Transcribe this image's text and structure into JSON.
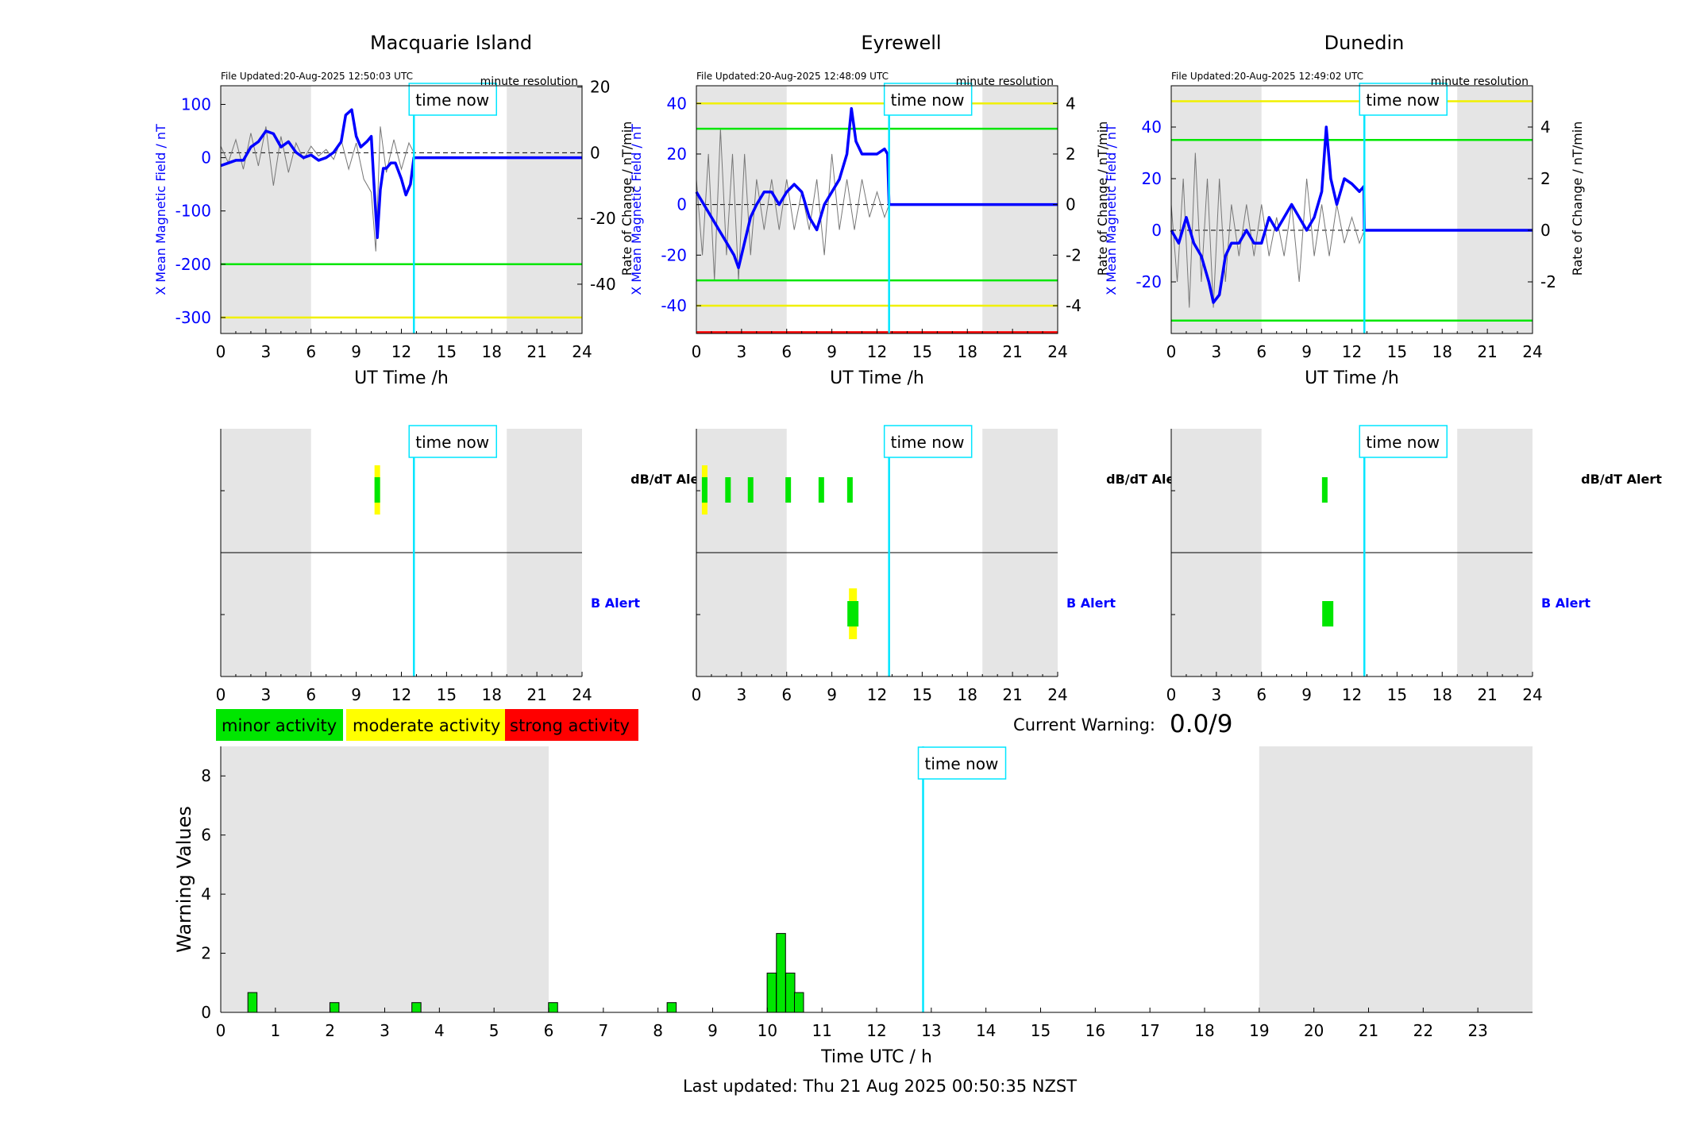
{
  "tick_labels_24": [
    "0",
    "3",
    "6",
    "9",
    "12",
    "15",
    "18",
    "21",
    "24"
  ],
  "magnetometer_panels": [
    {
      "title": "Macquarie Island",
      "file_updated": "File Updated:20-Aug-2025 12:50:03 UTC",
      "resolution": "minute resolution",
      "left_ylabel": "X Mean Magnetic Field / nT",
      "right_ylabel": "Rate of Change / nT/min",
      "xlabel": "UT Time /h",
      "time_now_label": "time now",
      "left_ylim": [
        -330,
        135
      ],
      "left_ticks": [
        "100",
        "0",
        "-100",
        "-200",
        "-300"
      ],
      "left_tick_values": [
        100,
        0,
        -100,
        -200,
        -300
      ],
      "right_ylim": [
        -55,
        20.4
      ],
      "right_ticks": [
        "20",
        "0",
        "-20",
        "-40"
      ],
      "right_tick_values": [
        20,
        0,
        -20,
        -40
      ],
      "night_shading_h": [
        [
          0,
          6
        ],
        [
          19,
          24
        ]
      ],
      "time_now_h": 12.83,
      "threshold_lines": [
        {
          "value": -200,
          "color": "#00e600"
        },
        {
          "value": -300,
          "color": "#f0f000"
        }
      ],
      "field_series_h": [
        0,
        0.5,
        1,
        1.5,
        2,
        2.5,
        3,
        3.5,
        4,
        4.5,
        5,
        5.5,
        6,
        6.5,
        7,
        7.5,
        8,
        8.3,
        8.7,
        9,
        9.3,
        9.7,
        10,
        10.2,
        10.4,
        10.6,
        10.8,
        11,
        11.3,
        11.6,
        12,
        12.3,
        12.6,
        12.83,
        24
      ],
      "field_series_nT": [
        -15,
        -10,
        -5,
        -5,
        20,
        30,
        50,
        45,
        20,
        30,
        10,
        0,
        5,
        -5,
        0,
        10,
        30,
        80,
        90,
        40,
        20,
        30,
        40,
        -60,
        -150,
        -60,
        -20,
        -20,
        -10,
        -10,
        -40,
        -70,
        -50,
        0,
        0
      ],
      "rate_series_h": [
        0,
        0.5,
        1,
        1.5,
        2,
        2.5,
        3,
        3.5,
        4,
        4.5,
        5,
        5.5,
        6,
        6.5,
        7,
        7.5,
        8,
        8.5,
        9,
        9.5,
        10,
        10.3,
        10.6,
        11,
        11.5,
        12,
        12.5,
        12.83
      ],
      "rate_series_nT_min": [
        2,
        -3,
        4,
        -5,
        6,
        -4,
        8,
        -10,
        5,
        -6,
        3,
        -2,
        2,
        -1,
        1,
        -2,
        4,
        -5,
        3,
        -8,
        -12,
        -30,
        8,
        -6,
        4,
        -5,
        3,
        0
      ]
    },
    {
      "title": "Eyrewell",
      "file_updated": "File Updated:20-Aug-2025 12:48:09 UTC",
      "resolution": "minute resolution",
      "left_ylabel": "X Mean Magnetic Field / nT",
      "right_ylabel": "Rate of Change / nT/min",
      "xlabel": "UT Time /h",
      "time_now_label": "time now",
      "left_ylim": [
        -51,
        47
      ],
      "left_ticks": [
        "40",
        "20",
        "0",
        "-20",
        "-40"
      ],
      "left_tick_values": [
        40,
        20,
        0,
        -20,
        -40
      ],
      "right_ylim": [
        -5.1,
        4.7
      ],
      "right_ticks": [
        "4",
        "2",
        "0",
        "-2",
        "-4"
      ],
      "right_tick_values": [
        4,
        2,
        0,
        -2,
        -4
      ],
      "night_shading_h": [
        [
          0,
          6
        ],
        [
          19,
          24
        ]
      ],
      "time_now_h": 12.8,
      "threshold_lines": [
        {
          "value": 40,
          "color": "#f0f000"
        },
        {
          "value": 30,
          "color": "#00e600"
        },
        {
          "value": -30,
          "color": "#00e600"
        },
        {
          "value": -40,
          "color": "#f0f000"
        },
        {
          "value": -50.5,
          "color": "#ff0000"
        }
      ],
      "field_series_h": [
        0,
        0.5,
        1,
        1.5,
        2,
        2.5,
        2.8,
        3.2,
        3.6,
        4,
        4.5,
        5,
        5.5,
        6,
        6.5,
        7,
        7.5,
        8,
        8.5,
        9,
        9.5,
        10,
        10.3,
        10.6,
        11,
        11.5,
        12,
        12.5,
        12.7,
        12.8,
        24
      ],
      "field_series_nT": [
        5,
        0,
        -5,
        -10,
        -15,
        -20,
        -25,
        -15,
        -5,
        0,
        5,
        5,
        0,
        5,
        8,
        5,
        -5,
        -10,
        0,
        5,
        10,
        20,
        38,
        25,
        20,
        20,
        20,
        22,
        20,
        0,
        0
      ],
      "rate_series_h": [
        0,
        0.4,
        0.8,
        1.2,
        1.6,
        2,
        2.4,
        2.8,
        3.2,
        3.6,
        4,
        4.5,
        5,
        5.5,
        6,
        6.5,
        7,
        7.5,
        8,
        8.5,
        9,
        9.5,
        10,
        10.5,
        11,
        11.5,
        12,
        12.5,
        12.8
      ],
      "rate_series_nT_min": [
        1,
        -2,
        2,
        -3,
        3,
        -2,
        2,
        -3,
        2,
        -2,
        1,
        -1,
        1,
        -1,
        1,
        -1,
        0.5,
        -1,
        1,
        -2,
        2,
        -1,
        1,
        -1,
        1,
        -0.5,
        0.5,
        -0.5,
        0
      ]
    },
    {
      "title": "Dunedin",
      "file_updated": "File Updated:20-Aug-2025 12:49:02 UTC",
      "resolution": "minute resolution",
      "left_ylabel": "X Mean Magnetic Field / nT",
      "right_ylabel": "Rate of Change / nT/min",
      "xlabel": "UT Time /h",
      "time_now_label": "time now",
      "left_ylim": [
        -40,
        56
      ],
      "left_ticks": [
        "40",
        "20",
        "0",
        "-20"
      ],
      "left_tick_values": [
        40,
        20,
        0,
        -20
      ],
      "right_ylim": [
        -4.0,
        5.6
      ],
      "right_ticks": [
        "4",
        "2",
        "0",
        "-2"
      ],
      "right_tick_values": [
        4,
        2,
        0,
        -2
      ],
      "night_shading_h": [
        [
          0,
          6
        ],
        [
          19,
          24
        ]
      ],
      "time_now_h": 12.83,
      "threshold_lines": [
        {
          "value": 50,
          "color": "#f0f000"
        },
        {
          "value": 35,
          "color": "#00e600"
        },
        {
          "value": -35,
          "color": "#00e600"
        }
      ],
      "field_series_h": [
        0,
        0.5,
        1,
        1.5,
        2,
        2.5,
        2.8,
        3.2,
        3.6,
        4,
        4.5,
        5,
        5.5,
        6,
        6.5,
        7,
        7.5,
        8,
        8.5,
        9,
        9.5,
        10,
        10.3,
        10.6,
        11,
        11.5,
        12,
        12.5,
        12.8,
        12.83,
        24
      ],
      "field_series_nT": [
        0,
        -5,
        5,
        -5,
        -10,
        -20,
        -28,
        -25,
        -10,
        -5,
        -5,
        0,
        -5,
        -5,
        5,
        0,
        5,
        10,
        5,
        0,
        5,
        15,
        40,
        20,
        10,
        20,
        18,
        15,
        17,
        0,
        0
      ],
      "rate_series_h": [
        0,
        0.4,
        0.8,
        1.2,
        1.6,
        2,
        2.4,
        2.8,
        3.2,
        3.6,
        4,
        4.5,
        5,
        5.5,
        6,
        6.5,
        7,
        7.5,
        8,
        8.5,
        9,
        9.5,
        10,
        10.5,
        11,
        11.5,
        12,
        12.5,
        12.83
      ],
      "rate_series_nT_min": [
        1,
        -2,
        2,
        -3,
        3,
        -2,
        2,
        -3,
        2,
        -2,
        1,
        -1,
        1,
        -1,
        1,
        -1,
        0.5,
        -1,
        1,
        -2,
        2,
        -1,
        1,
        -1,
        1,
        -0.5,
        0.5,
        -0.5,
        0
      ]
    }
  ],
  "alert_panels": [
    {
      "db_label": "dB/dT Alert",
      "b_label": "B Alert",
      "time_now_label": "time now",
      "time_now_h": 12.83,
      "night_shading_h": [
        [
          0,
          6
        ],
        [
          19,
          24
        ]
      ],
      "db_events": [
        {
          "h": 10.4,
          "level": "moderate"
        }
      ],
      "b_events": []
    },
    {
      "db_label": "dB/dT Alert",
      "b_label": "B Alert",
      "time_now_label": "time now",
      "time_now_h": 12.8,
      "night_shading_h": [
        [
          0,
          6
        ],
        [
          19,
          24
        ]
      ],
      "db_events": [
        {
          "h": 0.55,
          "level": "moderate"
        },
        {
          "h": 2.1,
          "level": "minor"
        },
        {
          "h": 3.6,
          "level": "minor"
        },
        {
          "h": 6.1,
          "level": "minor"
        },
        {
          "h": 8.3,
          "level": "minor"
        },
        {
          "h": 10.2,
          "level": "minor"
        }
      ],
      "b_events": [
        {
          "h": 10.4,
          "level": "moderate"
        }
      ]
    },
    {
      "db_label": "dB/dT Alert",
      "b_label": "B Alert",
      "time_now_label": "time now",
      "time_now_h": 12.83,
      "night_shading_h": [
        [
          0,
          6
        ],
        [
          19,
          24
        ]
      ],
      "db_events": [
        {
          "h": 10.2,
          "level": "minor"
        }
      ],
      "b_events": [
        {
          "h": 10.4,
          "level": "minor"
        }
      ]
    }
  ],
  "legend": {
    "minor": {
      "label": "minor activity",
      "color": "#00e600"
    },
    "moderate": {
      "label": "moderate activity",
      "color": "#ffff00"
    },
    "strong": {
      "label": "strong activity",
      "color": "#ff0000"
    }
  },
  "current_warning": {
    "label": "Current Warning:",
    "value": "0.0/9"
  },
  "chart_data": {
    "type": "bar",
    "ylabel": "Warning Values",
    "xlabel": "Time UTC / h",
    "xlim": [
      0,
      24
    ],
    "ylim": [
      0,
      9
    ],
    "y_ticks": [
      "0",
      "2",
      "4",
      "6",
      "8"
    ],
    "y_tick_values": [
      0,
      2,
      4,
      6,
      8
    ],
    "x_ticks": [
      "0",
      "1",
      "2",
      "3",
      "4",
      "5",
      "6",
      "7",
      "8",
      "9",
      "10",
      "11",
      "12",
      "13",
      "14",
      "15",
      "16",
      "17",
      "18",
      "19",
      "20",
      "21",
      "22",
      "23"
    ],
    "night_shading_h": [
      [
        0,
        6
      ],
      [
        19,
        24
      ]
    ],
    "time_now_h": 12.85,
    "time_now_label": "time now",
    "bar_color": "#00e600",
    "bars": [
      {
        "x": 0.58,
        "value": 0.67
      },
      {
        "x": 2.08,
        "value": 0.33
      },
      {
        "x": 3.58,
        "value": 0.33
      },
      {
        "x": 6.08,
        "value": 0.33
      },
      {
        "x": 8.25,
        "value": 0.33
      },
      {
        "x": 10.08,
        "value": 1.33
      },
      {
        "x": 10.25,
        "value": 2.67
      },
      {
        "x": 10.42,
        "value": 1.33
      },
      {
        "x": 10.58,
        "value": 0.67
      }
    ]
  },
  "footer": "Last updated: Thu 21 Aug 2025 00:50:35 NZST"
}
